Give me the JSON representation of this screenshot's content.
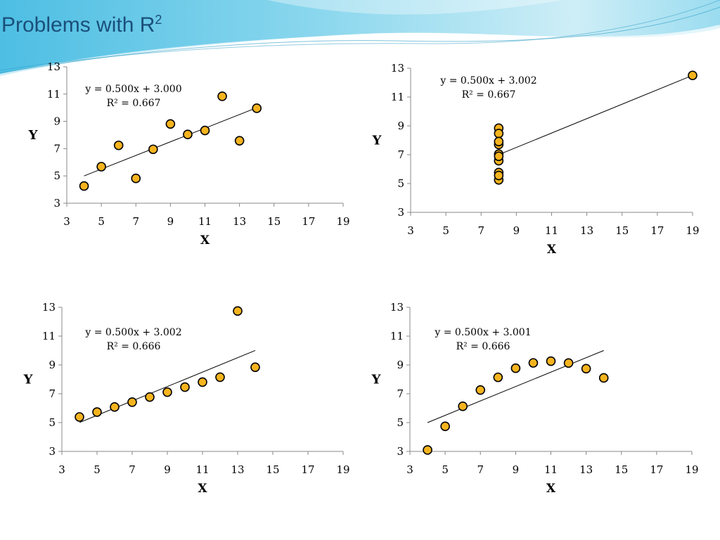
{
  "slide": {
    "title_main": "Problems with R",
    "title_sup": "2",
    "accent_color": "#5fc5e3"
  },
  "chart_data": [
    {
      "type": "scatter",
      "xlabel": "X",
      "ylabel": "Y",
      "xlim": [
        3,
        19
      ],
      "ylim": [
        3,
        13
      ],
      "xticks": [
        3,
        5,
        7,
        9,
        11,
        13,
        15,
        17,
        19
      ],
      "yticks": [
        3,
        5,
        7,
        9,
        11,
        13
      ],
      "equation": "y = 0.500x + 3.000",
      "r2_label": "R² = 0.667",
      "fit": {
        "slope": 0.5,
        "intercept": 3.0,
        "x_range": [
          4,
          14
        ]
      },
      "marker_color": "#f5b41e",
      "points": [
        [
          10,
          8.04
        ],
        [
          8,
          6.95
        ],
        [
          13,
          7.58
        ],
        [
          9,
          8.81
        ],
        [
          11,
          8.33
        ],
        [
          14,
          9.96
        ],
        [
          6,
          7.24
        ],
        [
          4,
          4.26
        ],
        [
          12,
          10.84
        ],
        [
          7,
          4.82
        ],
        [
          5,
          5.68
        ]
      ]
    },
    {
      "type": "scatter",
      "xlabel": "X",
      "ylabel": "Y",
      "xlim": [
        3,
        19
      ],
      "ylim": [
        3,
        13
      ],
      "xticks": [
        3,
        5,
        7,
        9,
        11,
        13,
        15,
        17,
        19
      ],
      "yticks": [
        3,
        5,
        7,
        9,
        11,
        13
      ],
      "equation": "y = 0.500x + 3.002",
      "r2_label": "R² = 0.667",
      "fit": {
        "slope": 0.5,
        "intercept": 3.002,
        "x_range": [
          8,
          19
        ]
      },
      "marker_color": "#f5b41e",
      "points": [
        [
          8,
          6.58
        ],
        [
          8,
          5.76
        ],
        [
          8,
          7.71
        ],
        [
          8,
          8.84
        ],
        [
          8,
          8.47
        ],
        [
          8,
          7.04
        ],
        [
          8,
          5.25
        ],
        [
          19,
          12.5
        ],
        [
          8,
          5.56
        ],
        [
          8,
          7.91
        ],
        [
          8,
          6.89
        ]
      ]
    },
    {
      "type": "scatter",
      "xlabel": "X",
      "ylabel": "Y",
      "xlim": [
        3,
        19
      ],
      "ylim": [
        3,
        13
      ],
      "xticks": [
        3,
        5,
        7,
        9,
        11,
        13,
        15,
        17,
        19
      ],
      "yticks": [
        3,
        5,
        7,
        9,
        11,
        13
      ],
      "equation": "y = 0.500x + 3.002",
      "r2_label": "R² = 0.666",
      "fit": {
        "slope": 0.5,
        "intercept": 3.002,
        "x_range": [
          4,
          14
        ]
      },
      "marker_color": "#f5b41e",
      "points": [
        [
          10,
          7.46
        ],
        [
          8,
          6.77
        ],
        [
          13,
          12.74
        ],
        [
          9,
          7.11
        ],
        [
          11,
          7.81
        ],
        [
          14,
          8.84
        ],
        [
          6,
          6.08
        ],
        [
          4,
          5.39
        ],
        [
          12,
          8.15
        ],
        [
          7,
          6.42
        ],
        [
          5,
          5.73
        ]
      ]
    },
    {
      "type": "scatter",
      "xlabel": "X",
      "ylabel": "Y",
      "xlim": [
        3,
        19
      ],
      "ylim": [
        3,
        13
      ],
      "xticks": [
        3,
        5,
        7,
        9,
        11,
        13,
        15,
        17,
        19
      ],
      "yticks": [
        3,
        5,
        7,
        9,
        11,
        13
      ],
      "equation": "y = 0.500x + 3.001",
      "r2_label": "R² = 0.666",
      "fit": {
        "slope": 0.5,
        "intercept": 3.001,
        "x_range": [
          4,
          14
        ]
      },
      "marker_color": "#f5b41e",
      "points": [
        [
          10,
          9.14
        ],
        [
          8,
          8.14
        ],
        [
          13,
          8.74
        ],
        [
          9,
          8.77
        ],
        [
          11,
          9.26
        ],
        [
          14,
          8.1
        ],
        [
          6,
          6.13
        ],
        [
          4,
          3.1
        ],
        [
          12,
          9.13
        ],
        [
          7,
          7.26
        ],
        [
          5,
          4.74
        ]
      ]
    }
  ]
}
